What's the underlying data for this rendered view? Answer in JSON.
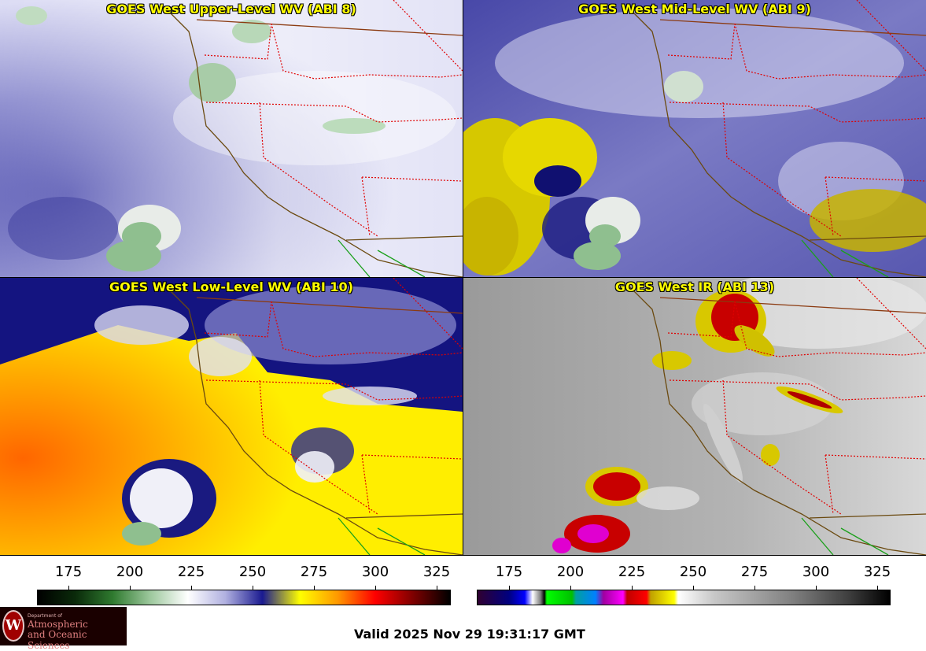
{
  "panels": [
    {
      "title": "GOES West Upper-Level WV (ABI 8)",
      "theme": "upper"
    },
    {
      "title": "GOES West Mid-Level WV (ABI 9)",
      "theme": "mid"
    },
    {
      "title": "GOES West Low-Level WV (ABI 10)",
      "theme": "low"
    },
    {
      "title": "GOES West IR (ABI 13)",
      "theme": "ir"
    }
  ],
  "colorbars": {
    "wv": {
      "ticks": [
        "175",
        "200",
        "225",
        "250",
        "275",
        "300",
        "325"
      ],
      "colors": [
        "#000000",
        "#0a2a0a",
        "#2f7a2f",
        "#9dc89d",
        "#ffffff",
        "#b0b0e0",
        "#1a1a90",
        "#ffff00",
        "#ff9900",
        "#ff0000",
        "#800000",
        "#000000"
      ]
    },
    "ir": {
      "ticks": [
        "175",
        "200",
        "225",
        "250",
        "275",
        "300",
        "325"
      ]
    }
  },
  "logo": {
    "emblem": "W",
    "line1": "Department of",
    "line2": "Atmospheric",
    "line3": "and Oceanic Sciences"
  },
  "valid": "Valid 2025 Nov 29 19:31:17 GMT"
}
